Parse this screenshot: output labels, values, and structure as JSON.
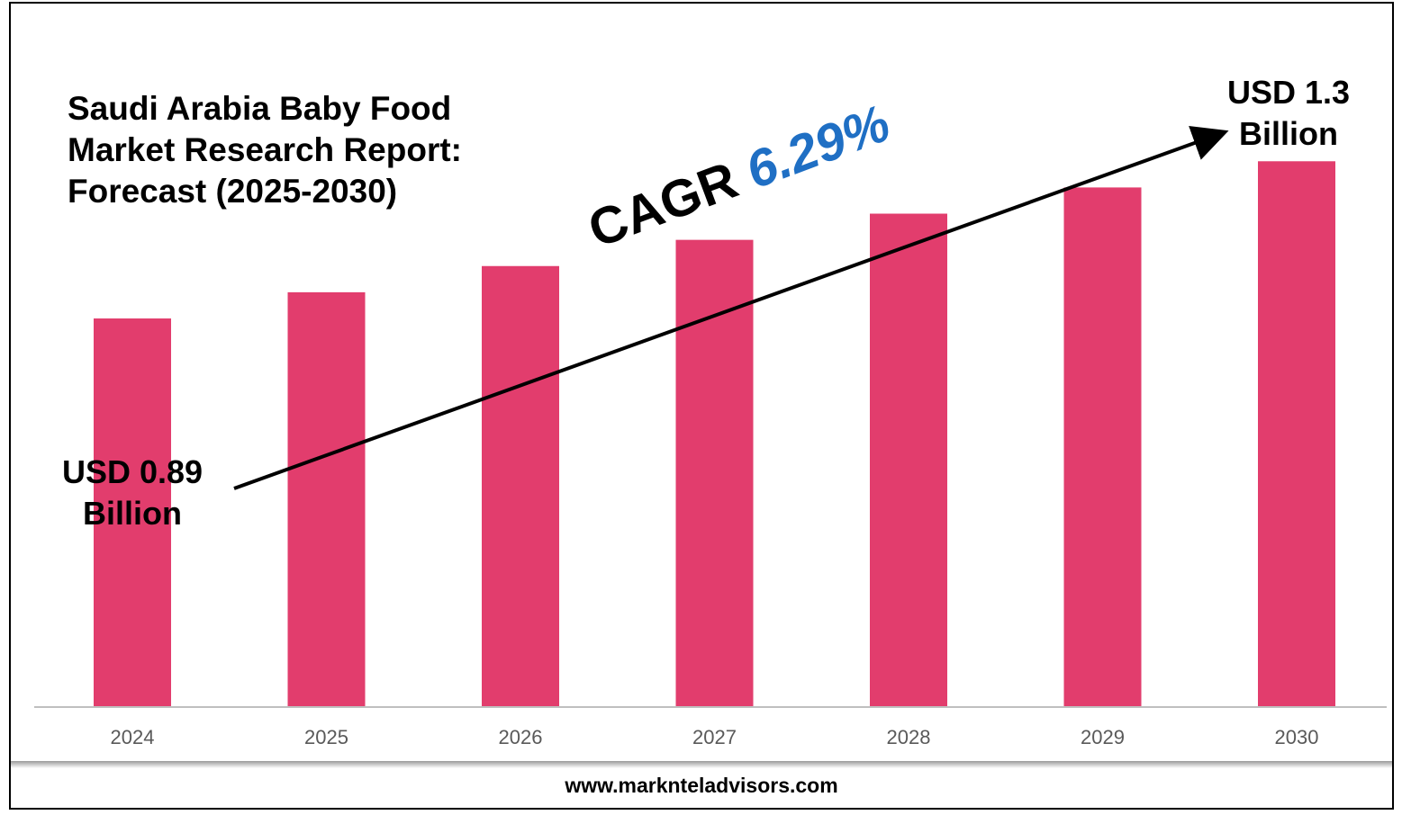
{
  "title_lines": [
    "Saudi Arabia Baby Food",
    "Market Research Report:",
    "Forecast (2025-2030)"
  ],
  "start_label": [
    "USD 0.89",
    "Billion"
  ],
  "end_label": [
    "USD 1.3",
    "Billion"
  ],
  "cagr": {
    "prefix": "CAGR",
    "value": "6.29%"
  },
  "footer": "www.marknteladvisors.com",
  "colors": {
    "bar": "#e23d6d",
    "accent": "#1f6fc4",
    "axis": "#bfbfbf",
    "tick_text": "#595959"
  },
  "chart_data": {
    "type": "bar",
    "categories": [
      "2024",
      "2025",
      "2026",
      "2027",
      "2028",
      "2029",
      "2030"
    ],
    "values": [
      0.89,
      0.95,
      1.01,
      1.07,
      1.13,
      1.19,
      1.25
    ],
    "ylim": [
      0,
      1.3
    ],
    "grid": false,
    "title": "Saudi Arabia Baby Food Market Research Report: Forecast (2025-2030)",
    "xlabel": "",
    "ylabel": ""
  }
}
